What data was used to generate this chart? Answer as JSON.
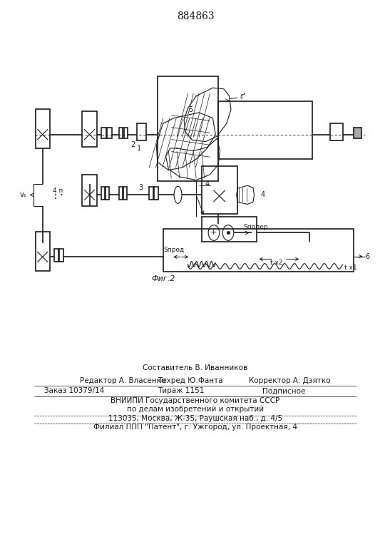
{
  "title": "884863",
  "bg_color": "#ffffff",
  "line_color": "#1a1a1a",
  "footer": {
    "line1": "Составитель В. Иванников",
    "line2_l": "Редактор А. Власенко",
    "line2_m": "Техред Ю.Фанта",
    "line2_r": "Корректор А. Дзятко",
    "line3_l": "Заказ 10379/14",
    "line3_m": "Тираж 1151",
    "line3_r": "Подписное",
    "line4": "ВНИИПИ Государственного комитета СССР",
    "line5": "по делам изобретений и открытий",
    "line6": "113035, Москва, Ж-35, Раушская наб., д. 4/5",
    "line7": "Филиал ППП \"Патент\", г. Ужгород, ул. Проектная, 4"
  }
}
